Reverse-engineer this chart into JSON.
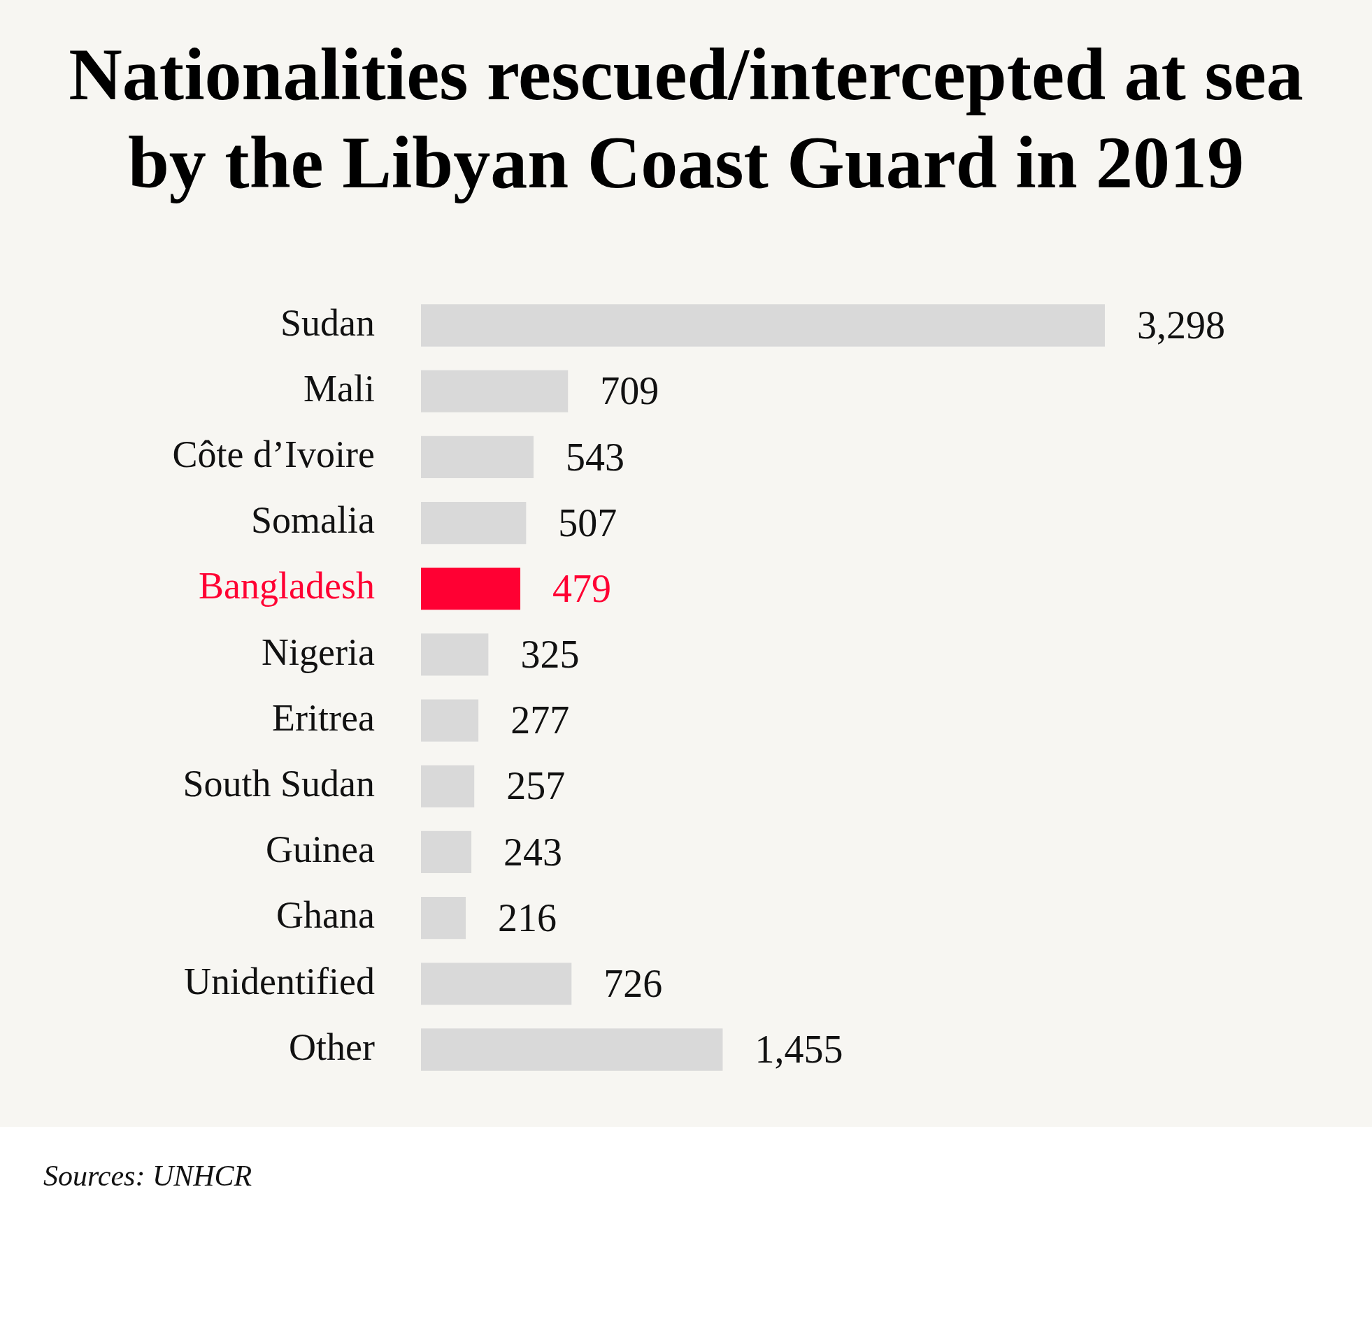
{
  "chart_data": {
    "type": "bar",
    "orientation": "horizontal",
    "title": "Nationalities rescued/intercepted at sea by the Libyan Coast Guard in 2019",
    "categories": [
      "Sudan",
      "Mali",
      "Côte d’Ivoire",
      "Somalia",
      "Bangladesh",
      "Nigeria",
      "Eritrea",
      "South Sudan",
      "Guinea",
      "Ghana",
      "Unidentified",
      "Other"
    ],
    "values": [
      3298,
      709,
      543,
      507,
      479,
      325,
      277,
      257,
      243,
      216,
      726,
      1455
    ],
    "value_labels": [
      "3,298",
      "709",
      "543",
      "507",
      "479",
      "325",
      "277",
      "257",
      "243",
      "216",
      "726",
      "1,455"
    ],
    "color": "#d9d9d9",
    "colors": [
      "#d9d9d9",
      "#d9d9d9",
      "#d9d9d9",
      "#d9d9d9",
      "#ff0033",
      "#d9d9d9",
      "#d9d9d9",
      "#d9d9d9",
      "#d9d9d9",
      "#d9d9d9",
      "#d9d9d9",
      "#d9d9d9"
    ],
    "annotations": [
      "Sources: UNHCR"
    ]
  }
}
